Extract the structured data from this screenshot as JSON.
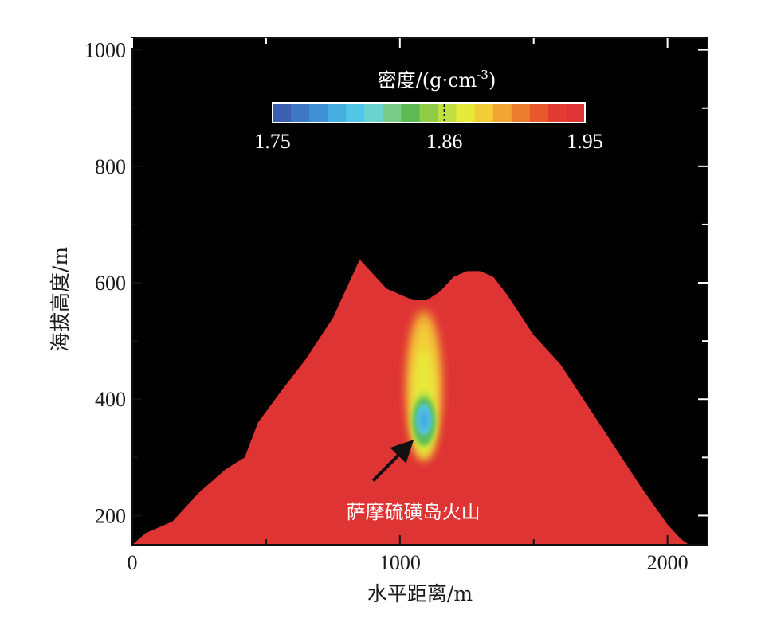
{
  "chart_data": {
    "type": "heatmap",
    "xlabel": "水平距离/m",
    "ylabel": "海拔高度/m",
    "xlim": [
      0,
      2150
    ],
    "ylim": [
      150,
      1020
    ],
    "x_ticks": [
      0,
      1000,
      2000
    ],
    "y_ticks": [
      200,
      400,
      600,
      800,
      1000
    ],
    "background_color": "#000000",
    "colorbar": {
      "title_main": "密度/(g·cm",
      "title_exp": "-3",
      "title_close": ")",
      "min": 1.75,
      "mid": 1.86,
      "max": 1.95,
      "tick_labels": [
        "1.75",
        "1.86",
        "1.95"
      ],
      "colors": [
        "#3c5fb0",
        "#3f78c4",
        "#3f91d3",
        "#46aee0",
        "#52c6e6",
        "#6ad2cf",
        "#7acb8a",
        "#5cbb55",
        "#8fcd45",
        "#bfe040",
        "#e8ea3a",
        "#f3cd38",
        "#f1a534",
        "#ec7d30",
        "#e9582e",
        "#e33a31",
        "#de3434"
      ]
    },
    "terrain_profile": {
      "x": [
        0,
        50,
        150,
        250,
        350,
        420,
        470,
        550,
        650,
        750,
        850,
        950,
        1000,
        1050,
        1100,
        1150,
        1200,
        1250,
        1300,
        1350,
        1400,
        1500,
        1600,
        1700,
        1800,
        1900,
        2000,
        2050,
        2080
      ],
      "y": [
        150,
        170,
        190,
        240,
        280,
        300,
        360,
        410,
        470,
        540,
        640,
        590,
        580,
        570,
        570,
        585,
        610,
        620,
        620,
        610,
        580,
        510,
        460,
        390,
        320,
        250,
        185,
        160,
        150
      ],
      "fill_color": "#de3434"
    },
    "low_density_anomaly": {
      "center_x": 1090,
      "center_y": 365,
      "top_y": 545,
      "bottom_y": 305,
      "min_density": 1.8
    },
    "annotation": {
      "text": "萨摩硫磺岛火山",
      "arrow_from": [
        900,
        260
      ],
      "arrow_to": [
        1040,
        325
      ]
    }
  }
}
